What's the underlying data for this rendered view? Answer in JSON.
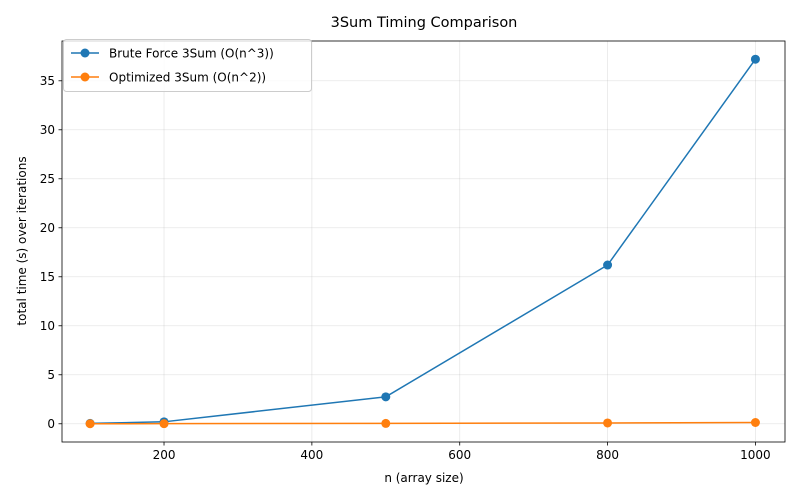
{
  "chart_data": {
    "type": "line",
    "title": "3Sum Timing Comparison",
    "xlabel": "n (array size)",
    "ylabel": "total time (s) over iterations",
    "x": [
      100,
      200,
      500,
      800,
      1000
    ],
    "series": [
      {
        "name": "Brute Force 3Sum (O(n^3))",
        "color": "#1f77b4",
        "values": [
          0.04,
          0.2,
          2.75,
          16.2,
          37.2
        ]
      },
      {
        "name": "Optimized 3Sum (O(n^2))",
        "color": "#ff7f0e",
        "values": [
          0.004,
          0.01,
          0.04,
          0.08,
          0.13
        ]
      }
    ],
    "xlim": [
      62,
      1040
    ],
    "ylim": [
      -1.86,
      39.06
    ],
    "xticks": [
      200,
      400,
      600,
      800,
      1000
    ],
    "xtick_labels": [
      "200",
      "400",
      "600",
      "800",
      "1000"
    ],
    "yticks": [
      0,
      5,
      10,
      15,
      20,
      25,
      30,
      35
    ],
    "ytick_labels": [
      "0",
      "5",
      "10",
      "15",
      "20",
      "25",
      "30",
      "35"
    ],
    "grid": true,
    "legend_position": "top-left",
    "marker": "circle"
  }
}
